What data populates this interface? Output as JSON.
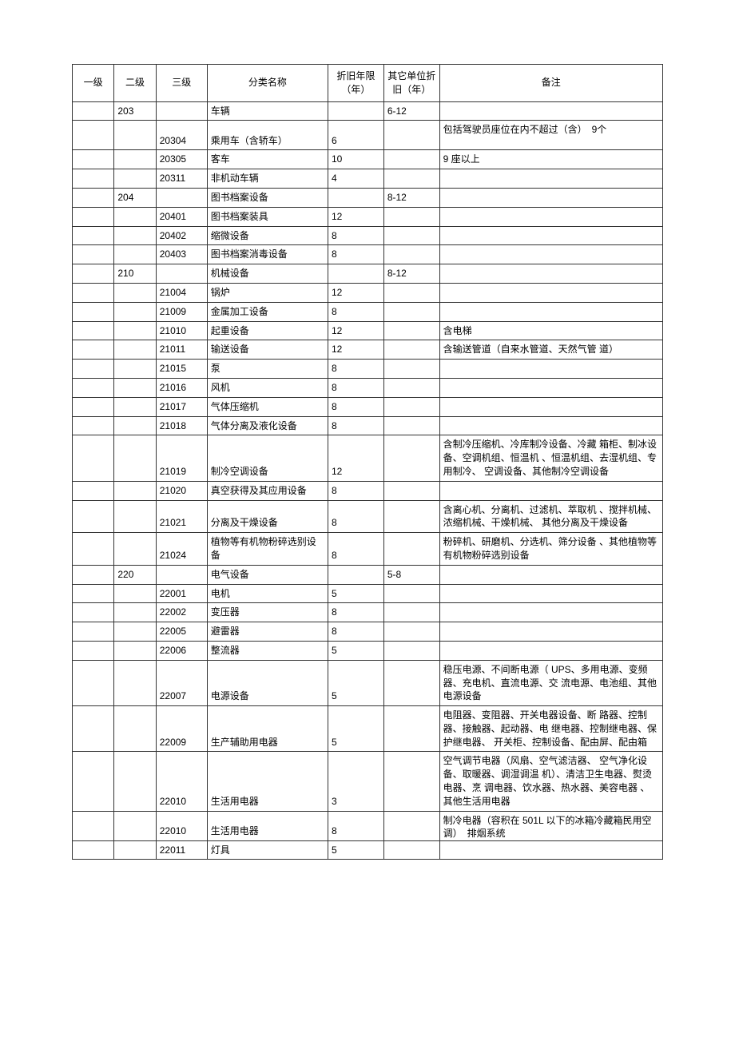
{
  "headers": {
    "level1": "一级",
    "level2": "二级",
    "level3": "三级",
    "name": "分类名称",
    "years": "折旧年限（年）",
    "other_years": "其它单位折旧（年）",
    "remark": "备注"
  },
  "rows": [
    {
      "l1": "",
      "l2": "203",
      "l3": "",
      "name": "车辆",
      "years": "",
      "other": "6-12",
      "remark": "",
      "clip": false
    },
    {
      "l1": "",
      "l2": "",
      "l3": "20304",
      "name": "乘用车（含轿车）",
      "years": "6",
      "other": "",
      "remark": "包括驾驶员座位在内不超过（含）　9个",
      "clip": true
    },
    {
      "l1": "",
      "l2": "",
      "l3": "20305",
      "name": "客车",
      "years": "10",
      "other": "",
      "remark": "9 座以上",
      "clip": false
    },
    {
      "l1": "",
      "l2": "",
      "l3": "20311",
      "name": "非机动车辆",
      "years": "4",
      "other": "",
      "remark": "",
      "clip": false
    },
    {
      "l1": "",
      "l2": "204",
      "l3": "",
      "name": "图书档案设备",
      "years": "",
      "other": "8-12",
      "remark": "",
      "clip": false
    },
    {
      "l1": "",
      "l2": "",
      "l3": "20401",
      "name": "图书档案装具",
      "years": "12",
      "other": "",
      "remark": "",
      "clip": false
    },
    {
      "l1": "",
      "l2": "",
      "l3": "20402",
      "name": "缩微设备",
      "years": "8",
      "other": "",
      "remark": "",
      "clip": false
    },
    {
      "l1": "",
      "l2": "",
      "l3": "20403",
      "name": "图书档案消毒设备",
      "years": "8",
      "other": "",
      "remark": "",
      "clip": false
    },
    {
      "l1": "",
      "l2": "210",
      "l3": "",
      "name": "机械设备",
      "years": "",
      "other": "8-12",
      "remark": "",
      "clip": false
    },
    {
      "l1": "",
      "l2": "",
      "l3": "21004",
      "name": "锅炉",
      "years": "12",
      "other": "",
      "remark": "",
      "clip": false
    },
    {
      "l1": "",
      "l2": "",
      "l3": "21009",
      "name": "金属加工设备",
      "years": "8",
      "other": "",
      "remark": "",
      "clip": false
    },
    {
      "l1": "",
      "l2": "",
      "l3": "21010",
      "name": "起重设备",
      "years": "12",
      "other": "",
      "remark": "含电梯",
      "clip": false
    },
    {
      "l1": "",
      "l2": "",
      "l3": "21011",
      "name": "输送设备",
      "years": "12",
      "other": "",
      "remark": "含输送管道（自来水管道、天然气管 道）",
      "clip": false
    },
    {
      "l1": "",
      "l2": "",
      "l3": "21015",
      "name": "泵",
      "years": "8",
      "other": "",
      "remark": "",
      "clip": false
    },
    {
      "l1": "",
      "l2": "",
      "l3": "21016",
      "name": "风机",
      "years": "8",
      "other": "",
      "remark": "",
      "clip": false
    },
    {
      "l1": "",
      "l2": "",
      "l3": "21017",
      "name": "气体压缩机",
      "years": "8",
      "other": "",
      "remark": "",
      "clip": false
    },
    {
      "l1": "",
      "l2": "",
      "l3": "21018",
      "name": "气体分离及液化设备",
      "years": "8",
      "other": "",
      "remark": "",
      "clip": false
    },
    {
      "l1": "",
      "l2": "",
      "l3": "21019",
      "name": "制冷空调设备",
      "years": "12",
      "other": "",
      "remark": "含制冷压缩机、冷库制冷设备、冷藏 箱柜、制冰设备、空调机组、恒温机 、恒温机组、去湿机组、专用制冷、 空调设备、其他制冷空调设备",
      "clip": false
    },
    {
      "l1": "",
      "l2": "",
      "l3": "21020",
      "name": "真空获得及其应用设备",
      "years": "8",
      "other": "",
      "remark": "",
      "clip": false
    },
    {
      "l1": "",
      "l2": "",
      "l3": "21021",
      "name": "分离及干燥设备",
      "years": "8",
      "other": "",
      "remark": "含离心机、分离机、过滤机、萃取机 、搅拌机械、浓缩机械、干燥机械、 其他分离及干燥设备",
      "clip": false
    },
    {
      "l1": "",
      "l2": "",
      "l3": "21024",
      "name": "植物等有机物粉碎选别设备",
      "years": "8",
      "other": "",
      "remark": "粉碎机、研磨机、分选机、筛分设备 、其他植物等有机物粉碎选别设备",
      "clip": false
    },
    {
      "l1": "",
      "l2": "220",
      "l3": "",
      "name": "电气设备",
      "years": "",
      "other": "5-8",
      "remark": "",
      "clip": false
    },
    {
      "l1": "",
      "l2": "",
      "l3": "22001",
      "name": "电机",
      "years": "5",
      "other": "",
      "remark": "",
      "clip": false
    },
    {
      "l1": "",
      "l2": "",
      "l3": "22002",
      "name": "变压器",
      "years": "8",
      "other": "",
      "remark": "",
      "clip": false
    },
    {
      "l1": "",
      "l2": "",
      "l3": "22005",
      "name": "避雷器",
      "years": "8",
      "other": "",
      "remark": "",
      "clip": false
    },
    {
      "l1": "",
      "l2": "",
      "l3": "22006",
      "name": "整流器",
      "years": "5",
      "other": "",
      "remark": "",
      "clip": false
    },
    {
      "l1": "",
      "l2": "",
      "l3": "22007",
      "name": "电源设备",
      "years": "5",
      "other": "",
      "remark": "稳压电源、不间断电源（ UPS、多用电源、变频器、充电机、直流电源、交 流电源、电池组、其他电源设备",
      "clip": false
    },
    {
      "l1": "",
      "l2": "",
      "l3": "22009",
      "name": "生产辅助用电器",
      "years": "5",
      "other": "",
      "remark": "电阻器、变阻器、开关电器设备、断 路器、控制器、接触器、起动器、电 继电器、控制继电器、保护继电器、 开关柜、控制设备、配由屏、配由箱",
      "clip": false
    },
    {
      "l1": "",
      "l2": "",
      "l3": "22010",
      "name": "生活用电器",
      "years": "3",
      "other": "",
      "remark": "空气调节电器（风扇、空气滤洁器、 空气净化设备、取暖器、调湿调温 机）、清洁卫生电器、熨烫电器、烹 调电器、饮水器、热水器、美容电器 、其他生活用电器",
      "clip": false
    },
    {
      "l1": "",
      "l2": "",
      "l3": "22010",
      "name": "生活用电器",
      "years": "8",
      "other": "",
      "remark": "制冷电器（容积在 501L 以下的冰箱冷藏箱民用空调）　排烟系统",
      "clip": true
    },
    {
      "l1": "",
      "l2": "",
      "l3": "22011",
      "name": "灯具",
      "years": "5",
      "other": "",
      "remark": "",
      "clip": false
    }
  ],
  "style": {
    "border_color": "#333333",
    "text_color": "#000000",
    "background_color": "#ffffff",
    "font_size": 12
  }
}
